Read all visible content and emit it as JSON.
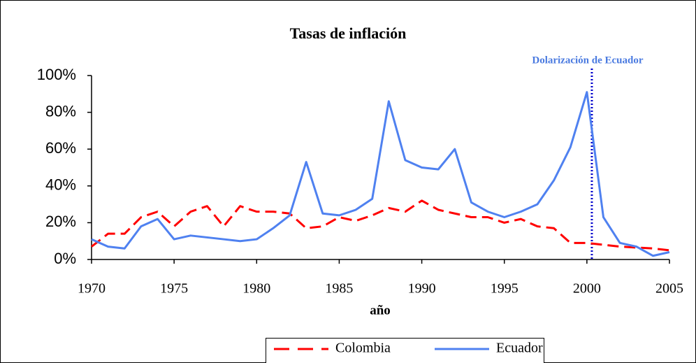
{
  "chart_data": {
    "type": "line",
    "title": "Tasas de inflación",
    "xlabel": "año",
    "x": [
      1970,
      1971,
      1972,
      1973,
      1974,
      1975,
      1976,
      1977,
      1978,
      1979,
      1980,
      1981,
      1982,
      1983,
      1984,
      1985,
      1986,
      1987,
      1988,
      1989,
      1990,
      1991,
      1992,
      1993,
      1994,
      1995,
      1996,
      1997,
      1998,
      1999,
      2000,
      2001,
      2002,
      2003,
      2004,
      2005
    ],
    "series": [
      {
        "name": "Colombia",
        "color": "#ff0000",
        "dash": true,
        "values": [
          7,
          14,
          14,
          23,
          26,
          18,
          26,
          29,
          18,
          29,
          26,
          26,
          25,
          17,
          18,
          23,
          21,
          24,
          28,
          26,
          32,
          27,
          25,
          23,
          23,
          20,
          22,
          18,
          17,
          9,
          9,
          8,
          7,
          6.5,
          6,
          5
        ]
      },
      {
        "name": "Ecuador",
        "color": "#4f81f0",
        "dash": false,
        "values": [
          11,
          7,
          6,
          18,
          22,
          11,
          13,
          12,
          11,
          10,
          11,
          17,
          24,
          53,
          25,
          24,
          27,
          33,
          86,
          54,
          50,
          49,
          60,
          31,
          26,
          23,
          26,
          30,
          43,
          61,
          91,
          23,
          9,
          7,
          2,
          4
        ]
      }
    ],
    "xlim": [
      1970,
      2005
    ],
    "xticks": [
      1970,
      1975,
      1980,
      1985,
      1990,
      1995,
      2000,
      2005
    ],
    "ylim": [
      0,
      100
    ],
    "yticks": [
      {
        "value": 0,
        "label": "0%"
      },
      {
        "value": 20,
        "label": "20%"
      },
      {
        "value": 40,
        "label": "40%"
      },
      {
        "value": 60,
        "label": "60%"
      },
      {
        "value": 80,
        "label": "80%"
      },
      {
        "value": 100,
        "label": "100%"
      }
    ],
    "annotation": {
      "text": "Dolarización de Ecuador",
      "x": 2000.3,
      "color": "#0000cc"
    },
    "legend": "bottom"
  }
}
